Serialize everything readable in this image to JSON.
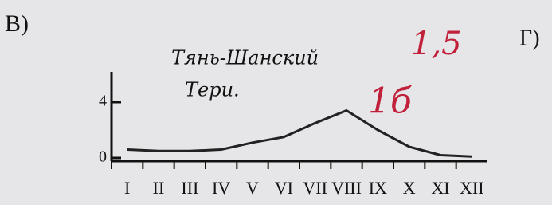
{
  "chart_data": {
    "type": "line",
    "label": "В)",
    "next_label": "Г)",
    "annotations": [
      "Тянь-Шанский",
      "Тери.",
      "1,5",
      "1б"
    ],
    "categories": [
      "I",
      "II",
      "III",
      "IV",
      "V",
      "VI",
      "VII",
      "VIII",
      "IX",
      "X",
      "XI",
      "XII"
    ],
    "values": [
      0.6,
      0.5,
      0.5,
      0.6,
      1.1,
      1.5,
      2.5,
      3.4,
      2.0,
      0.8,
      0.2,
      0.1
    ],
    "color": "#222222",
    "ylim": [
      0,
      6
    ],
    "yticks": [
      0,
      4
    ]
  }
}
